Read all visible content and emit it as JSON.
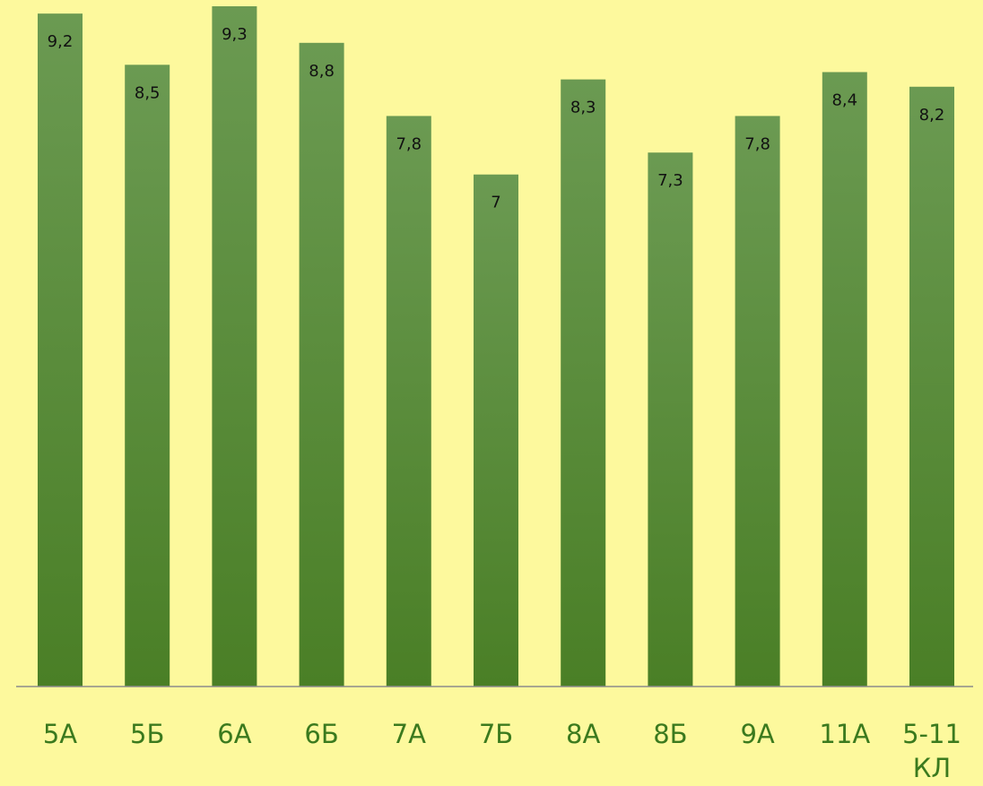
{
  "chart_data": {
    "type": "bar",
    "categories": [
      "5А",
      "5Б",
      "6А",
      "6Б",
      "7А",
      "7Б",
      "8А",
      "8Б",
      "9А",
      "11А",
      "5-11 КЛ"
    ],
    "values": [
      9.2,
      8.5,
      9.3,
      8.8,
      7.8,
      7,
      8.3,
      7.3,
      7.8,
      8.4,
      8.2
    ],
    "value_labels": [
      "9,2",
      "8,5",
      "9,3",
      "8,8",
      "7,8",
      "7",
      "8,3",
      "7,3",
      "7,8",
      "8,4",
      "8,2"
    ],
    "title": "",
    "xlabel": "",
    "ylabel": "",
    "ylim": [
      0,
      9.3
    ],
    "grid": false,
    "legend": "none",
    "colors": {
      "background": "#fdf99d",
      "bar_top": "#6b9a52",
      "bar_bottom": "#4a7f26",
      "baseline": "#8c8c8c",
      "category_text": "#3b7a1e",
      "value_text": "#111111"
    }
  }
}
